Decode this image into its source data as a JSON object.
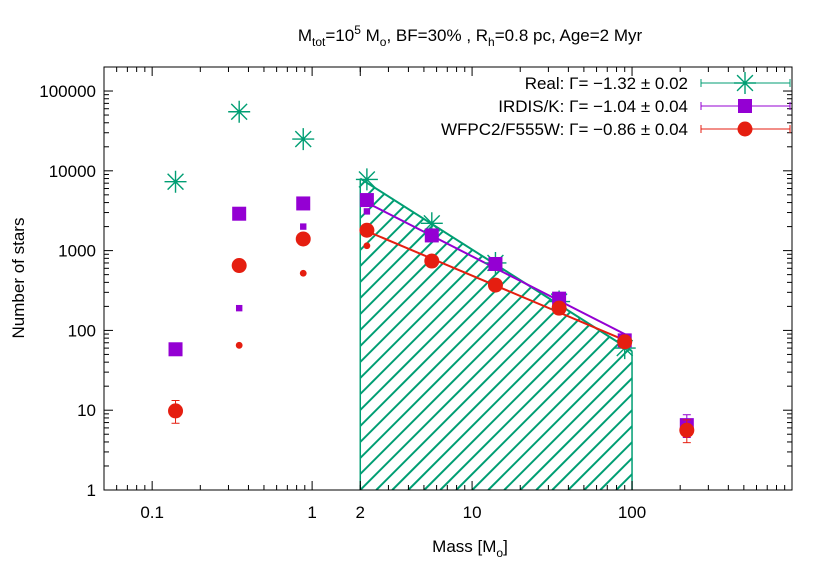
{
  "chart_data": {
    "type": "scatter",
    "title": {
      "pre": "M",
      "sub1": "tot",
      "mid1": "=10",
      "sup": "5",
      "mid2": " M",
      "sub2": "o",
      "rest": ", BF=30% , R",
      "sub3": "h",
      "tail": "=0.8 pc, Age=2 Myr"
    },
    "xlabel": {
      "pre": "Mass [M",
      "sub": "o",
      "post": "]"
    },
    "ylabel": "Number of stars",
    "xscale": "log",
    "yscale": "log",
    "xlim": [
      0.05,
      1000
    ],
    "ylim": [
      1,
      200000
    ],
    "xticks": [
      {
        "v": 0.1,
        "label": "0.1"
      },
      {
        "v": 1,
        "label": "1"
      },
      {
        "v": 2,
        "label": "2"
      },
      {
        "v": 10,
        "label": "10"
      },
      {
        "v": 100,
        "label": "100"
      }
    ],
    "yticks": [
      {
        "v": 1,
        "label": "1"
      },
      {
        "v": 10,
        "label": "10"
      },
      {
        "v": 100,
        "label": "100"
      },
      {
        "v": 1000,
        "label": "1000"
      },
      {
        "v": 10000,
        "label": "10000"
      },
      {
        "v": 100000,
        "label": "100000"
      }
    ],
    "legend_position": "top-right",
    "hatched_region": {
      "x_from": 2,
      "x_to": 100,
      "color": "#009e73"
    },
    "series": [
      {
        "name": "Real: Γ= −1.32 ± 0.02",
        "color": "#009e73",
        "marker": "star",
        "points": [
          {
            "x": 0.14,
            "y": 7300
          },
          {
            "x": 0.35,
            "y": 55000
          },
          {
            "x": 0.88,
            "y": 25000
          },
          {
            "x": 2.2,
            "y": 7800
          },
          {
            "x": 5.6,
            "y": 2200
          },
          {
            "x": 14,
            "y": 700
          },
          {
            "x": 35,
            "y": 230
          },
          {
            "x": 90,
            "y": 60
          }
        ],
        "fit": {
          "x_from": 2,
          "x_to": 100,
          "y_from": 8000,
          "y_to": 55
        }
      },
      {
        "name": "IRDIS/K: Γ= −1.04 ± 0.04",
        "color": "#9400d3",
        "marker": "square",
        "points": [
          {
            "x": 0.14,
            "y": 58
          },
          {
            "x": 0.35,
            "y": 2900
          },
          {
            "x": 0.88,
            "y": 3900
          },
          {
            "x": 2.2,
            "y": 4300
          },
          {
            "x": 5.6,
            "y": 1550
          },
          {
            "x": 14,
            "y": 680
          },
          {
            "x": 35,
            "y": 250
          },
          {
            "x": 90,
            "y": 75
          },
          {
            "x": 220,
            "y": 6.5
          }
        ],
        "small_points": [
          {
            "x": 0.35,
            "y": 190
          },
          {
            "x": 0.88,
            "y": 2000
          },
          {
            "x": 2.2,
            "y": 3100
          }
        ],
        "fit": {
          "x_from": 2,
          "x_to": 95,
          "y_from": 4400,
          "y_to": 85
        }
      },
      {
        "name": "WFPC2/F555W: Γ= −0.86 ± 0.04",
        "color": "#e51e10",
        "marker": "circle",
        "points": [
          {
            "x": 0.14,
            "y": 9.8
          },
          {
            "x": 0.35,
            "y": 650
          },
          {
            "x": 0.88,
            "y": 1400
          },
          {
            "x": 2.2,
            "y": 1800
          },
          {
            "x": 5.6,
            "y": 740
          },
          {
            "x": 14,
            "y": 370
          },
          {
            "x": 35,
            "y": 190
          },
          {
            "x": 90,
            "y": 72
          },
          {
            "x": 220,
            "y": 5.6
          }
        ],
        "small_points": [
          {
            "x": 0.35,
            "y": 65
          },
          {
            "x": 0.88,
            "y": 520
          },
          {
            "x": 2.2,
            "y": 1150
          }
        ],
        "fit": {
          "x_from": 2,
          "x_to": 95,
          "y_from": 1900,
          "y_to": 72
        }
      }
    ]
  }
}
